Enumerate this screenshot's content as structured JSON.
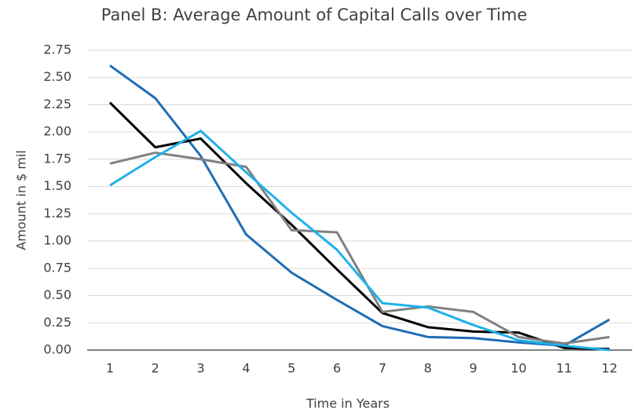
{
  "chart_data": {
    "type": "line",
    "title": "Panel B: Average Amount of Capital Calls over Time",
    "x_label": "Time in Years",
    "y_label": "Amount in $ mil",
    "categories": [
      "1",
      "2",
      "3",
      "4",
      "5",
      "6",
      "7",
      "8",
      "9",
      "10",
      "11",
      "12"
    ],
    "series": [
      {
        "color": "#1f6db5",
        "values": [
          2.61,
          2.31,
          1.78,
          1.06,
          0.71,
          0.46,
          0.22,
          0.12,
          0.11,
          0.07,
          0.04,
          0.28
        ]
      },
      {
        "color": "#000000",
        "values": [
          2.27,
          1.86,
          1.94,
          1.53,
          1.15,
          0.74,
          0.34,
          0.21,
          0.17,
          0.16,
          0.02,
          0.01
        ]
      },
      {
        "color": "#808080",
        "values": [
          1.71,
          1.81,
          1.75,
          1.68,
          1.1,
          1.08,
          0.35,
          0.4,
          0.35,
          0.12,
          0.06,
          0.12
        ]
      },
      {
        "color": "#1fb1ea",
        "values": [
          1.51,
          1.77,
          2.01,
          1.63,
          1.26,
          0.92,
          0.43,
          0.39,
          0.23,
          0.09,
          0.04,
          0.0
        ]
      }
    ],
    "ylim": [
      0,
      2.75
    ],
    "yticks": [
      {
        "value": 0,
        "label": "0.00"
      },
      0.25,
      {
        "value": 0.5,
        "label": "0.50"
      },
      0.75,
      {
        "value": 1,
        "label": "1.00"
      },
      1.25,
      {
        "value": 1.5,
        "label": "1.50"
      },
      1.75,
      {
        "value": 2,
        "label": "2.00"
      },
      2.25,
      {
        "value": 2.5,
        "label": "2.50"
      },
      2.75
    ],
    "grid": true
  }
}
